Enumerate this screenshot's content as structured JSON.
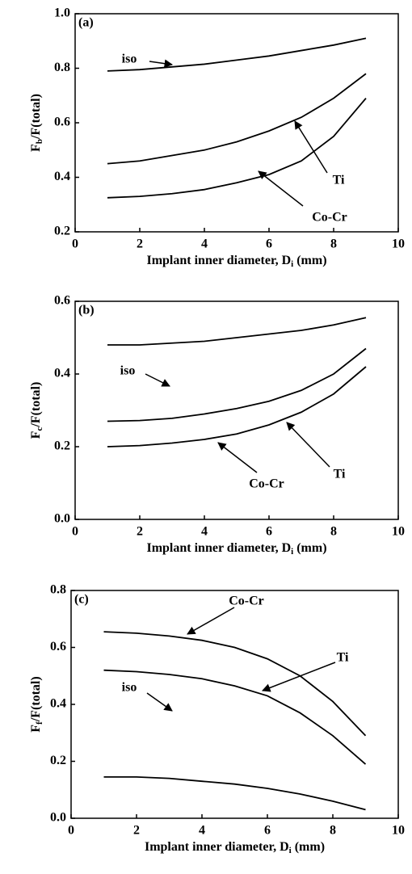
{
  "chart_data": [
    {
      "type": "line",
      "panel_label": "(a)",
      "xlabel": {
        "main": "Implant inner diameter, D",
        "sub": "i",
        "rest": " (mm)"
      },
      "ylabel": {
        "main": "F",
        "sub": "b",
        "rest": "/F(total)"
      },
      "x": [
        1,
        2,
        3,
        4,
        5,
        6,
        7,
        8,
        9
      ],
      "series": [
        {
          "name": "iso",
          "color": "#000000",
          "values": [
            0.79,
            0.795,
            0.805,
            0.815,
            0.83,
            0.845,
            0.865,
            0.885,
            0.91
          ]
        },
        {
          "name": "Ti",
          "color": "#000000",
          "values": [
            0.45,
            0.46,
            0.48,
            0.5,
            0.53,
            0.57,
            0.62,
            0.69,
            0.78
          ]
        },
        {
          "name": "Co-Cr",
          "color": "#000000",
          "values": [
            0.325,
            0.33,
            0.34,
            0.355,
            0.38,
            0.41,
            0.46,
            0.55,
            0.69
          ]
        }
      ],
      "xlim": [
        0,
        10
      ],
      "xticks": [
        0,
        2,
        4,
        6,
        8,
        10
      ],
      "ylim": [
        0.2,
        1
      ],
      "yticks": [
        0.2,
        0.4,
        0.6,
        0.8,
        {
          "value": 1,
          "label": "1.0"
        }
      ]
    },
    {
      "type": "line",
      "panel_label": "(b)",
      "xlabel": {
        "main": "Implant inner diameter, D",
        "sub": "i",
        "rest": " (mm)"
      },
      "ylabel": {
        "main": "F",
        "sub": "c",
        "rest": "/F(total)"
      },
      "x": [
        1,
        2,
        3,
        4,
        5,
        6,
        7,
        8,
        9
      ],
      "series": [
        {
          "name": "iso",
          "color": "#000000",
          "values": [
            0.48,
            0.48,
            0.485,
            0.49,
            0.5,
            0.51,
            0.52,
            0.535,
            0.555
          ]
        },
        {
          "name": "Ti",
          "color": "#000000",
          "values": [
            0.27,
            0.272,
            0.278,
            0.29,
            0.305,
            0.325,
            0.355,
            0.4,
            0.47
          ]
        },
        {
          "name": "Co-Cr",
          "color": "#000000",
          "values": [
            0.2,
            0.203,
            0.21,
            0.22,
            0.235,
            0.26,
            0.295,
            0.345,
            0.42
          ]
        }
      ],
      "xlim": [
        0,
        10
      ],
      "xticks": [
        0,
        2,
        4,
        6,
        8,
        10
      ],
      "ylim": [
        0,
        0.6
      ],
      "yticks": [
        {
          "value": 0,
          "label": "0.0"
        },
        0.2,
        0.4,
        0.6
      ]
    },
    {
      "type": "line",
      "panel_label": "(c)",
      "xlabel": {
        "main": "Implant inner diameter, D",
        "sub": "i",
        "rest": " (mm)"
      },
      "ylabel": {
        "main": "F",
        "sub": "f",
        "rest": "/F(total)"
      },
      "x": [
        1,
        2,
        3,
        4,
        5,
        6,
        7,
        8,
        9
      ],
      "series": [
        {
          "name": "Co-Cr",
          "color": "#000000",
          "values": [
            0.655,
            0.65,
            0.64,
            0.625,
            0.6,
            0.56,
            0.5,
            0.41,
            0.29
          ]
        },
        {
          "name": "Ti",
          "color": "#000000",
          "values": [
            0.52,
            0.515,
            0.505,
            0.49,
            0.465,
            0.43,
            0.37,
            0.29,
            0.19
          ]
        },
        {
          "name": "iso",
          "color": "#000000",
          "values": [
            0.145,
            0.145,
            0.14,
            0.13,
            0.12,
            0.105,
            0.085,
            0.06,
            0.03
          ]
        }
      ],
      "xlim": [
        0,
        10
      ],
      "xticks": [
        0,
        2,
        4,
        6,
        8,
        10
      ],
      "ylim": [
        0,
        0.8
      ],
      "yticks": [
        {
          "value": 0,
          "label": "0.0"
        },
        0.2,
        0.4,
        0.6,
        0.8
      ]
    }
  ]
}
